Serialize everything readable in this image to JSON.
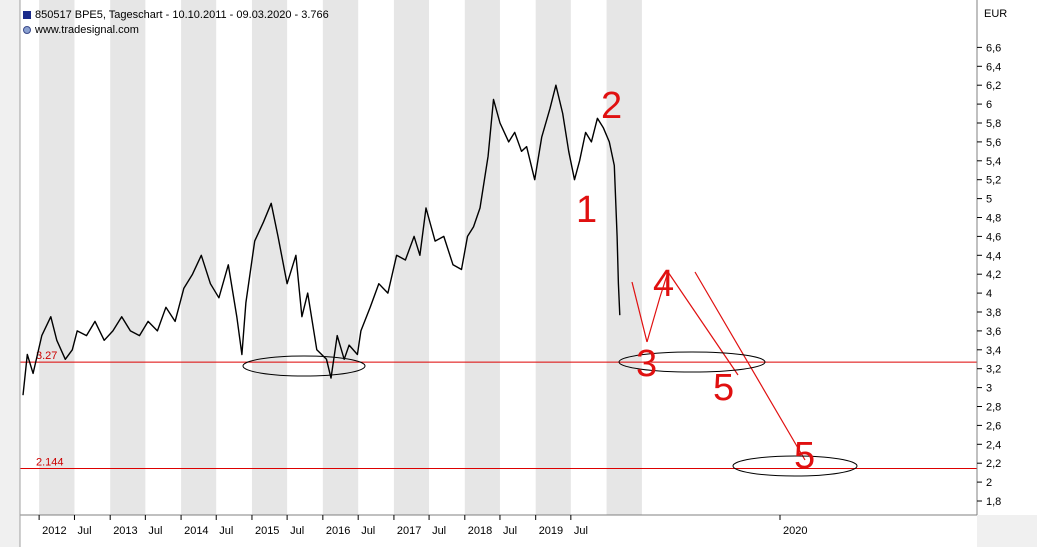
{
  "header": {
    "title": "850517  BPE5, Tageschart - 10.10.2011 - 09.03.2020 - 3.766",
    "url": "www.tradesignal.com"
  },
  "colors": {
    "background": "#ffffff",
    "band": "#e6e6e6",
    "price_line": "#000000",
    "support_line": "#dd0000",
    "annotation": "#e01010"
  },
  "chart_data": {
    "type": "line",
    "currency": "EUR",
    "x_start": "2011-10-10",
    "x_end": "2020-03-09",
    "last_value": 3.766,
    "ylim": [
      1.7,
      6.8
    ],
    "y_ticks": [
      "6,6",
      "6,4",
      "6,2",
      "6",
      "5,8",
      "5,6",
      "5,4",
      "5,2",
      "5",
      "4,8",
      "4,6",
      "4,4",
      "4,2",
      "4",
      "3,8",
      "3,6",
      "3,4",
      "3,2",
      "3",
      "2,8",
      "2,6",
      "2,4",
      "2,2",
      "2",
      "1,8"
    ],
    "x_ticks": [
      "2012",
      "Jul",
      "2013",
      "Jul",
      "2014",
      "Jul",
      "2015",
      "Jul",
      "2016",
      "Jul",
      "2017",
      "Jul",
      "2018",
      "Jul",
      "2019",
      "Jul",
      "2020"
    ],
    "series": [
      {
        "x": [
          "2011-10-10",
          "2011-11-01",
          "2011-12-01",
          "2012-01-15",
          "2012-03-01",
          "2012-04-01",
          "2012-05-15",
          "2012-06-20",
          "2012-07-15",
          "2012-09-01",
          "2012-10-15",
          "2012-12-01",
          "2013-01-15",
          "2013-03-01",
          "2013-04-15",
          "2013-06-01",
          "2013-07-15",
          "2013-09-01",
          "2013-10-15",
          "2013-12-01",
          "2014-01-15",
          "2014-03-01",
          "2014-04-15",
          "2014-06-01",
          "2014-07-15",
          "2014-09-01",
          "2014-10-15",
          "2014-11-10",
          "2014-12-01",
          "2015-01-15",
          "2015-03-01",
          "2015-04-10",
          "2015-05-15",
          "2015-07-01",
          "2015-08-15",
          "2015-09-15",
          "2015-10-15",
          "2015-12-01",
          "2016-01-20",
          "2016-02-12",
          "2016-03-15",
          "2016-04-20",
          "2016-05-15",
          "2016-06-27",
          "2016-07-15",
          "2016-09-01",
          "2016-10-15",
          "2016-12-01",
          "2017-01-15",
          "2017-03-01",
          "2017-04-15",
          "2017-05-15",
          "2017-06-15",
          "2017-08-01",
          "2017-09-15",
          "2017-11-01",
          "2017-12-15",
          "2018-01-15",
          "2018-02-15",
          "2018-03-20",
          "2018-05-01",
          "2018-05-29",
          "2018-07-01",
          "2018-08-15",
          "2018-09-15",
          "2018-10-20",
          "2018-11-15",
          "2018-12-27",
          "2019-02-01",
          "2019-03-15",
          "2019-04-15",
          "2019-05-20",
          "2019-06-20",
          "2019-07-20",
          "2019-08-15",
          "2019-09-15",
          "2019-10-15",
          "2019-11-15",
          "2019-12-15",
          "2020-01-15",
          "2020-02-10",
          "2020-02-24",
          "2020-03-02",
          "2020-03-09"
        ],
        "y": [
          2.92,
          3.35,
          3.15,
          3.55,
          3.75,
          3.5,
          3.3,
          3.4,
          3.6,
          3.55,
          3.7,
          3.5,
          3.6,
          3.75,
          3.6,
          3.55,
          3.7,
          3.6,
          3.85,
          3.7,
          4.05,
          4.2,
          4.4,
          4.1,
          3.95,
          4.3,
          3.75,
          3.35,
          3.9,
          4.55,
          4.75,
          4.95,
          4.6,
          4.1,
          4.4,
          3.75,
          4.0,
          3.4,
          3.3,
          3.1,
          3.55,
          3.3,
          3.45,
          3.35,
          3.6,
          3.85,
          4.1,
          4.0,
          4.4,
          4.35,
          4.6,
          4.4,
          4.9,
          4.55,
          4.6,
          4.3,
          4.25,
          4.6,
          4.7,
          4.9,
          5.45,
          6.05,
          5.8,
          5.6,
          5.7,
          5.5,
          5.55,
          5.2,
          5.65,
          5.95,
          6.2,
          5.9,
          5.5,
          5.2,
          5.4,
          5.7,
          5.6,
          5.85,
          5.75,
          5.6,
          5.35,
          4.6,
          4.1,
          3.766
        ]
      }
    ],
    "support_levels": [
      {
        "value": 3.27,
        "label": "3.27"
      },
      {
        "value": 2.144,
        "label": "2.144"
      }
    ],
    "wave_labels": [
      "1",
      "2",
      "3",
      "4",
      "5",
      "5"
    ]
  }
}
